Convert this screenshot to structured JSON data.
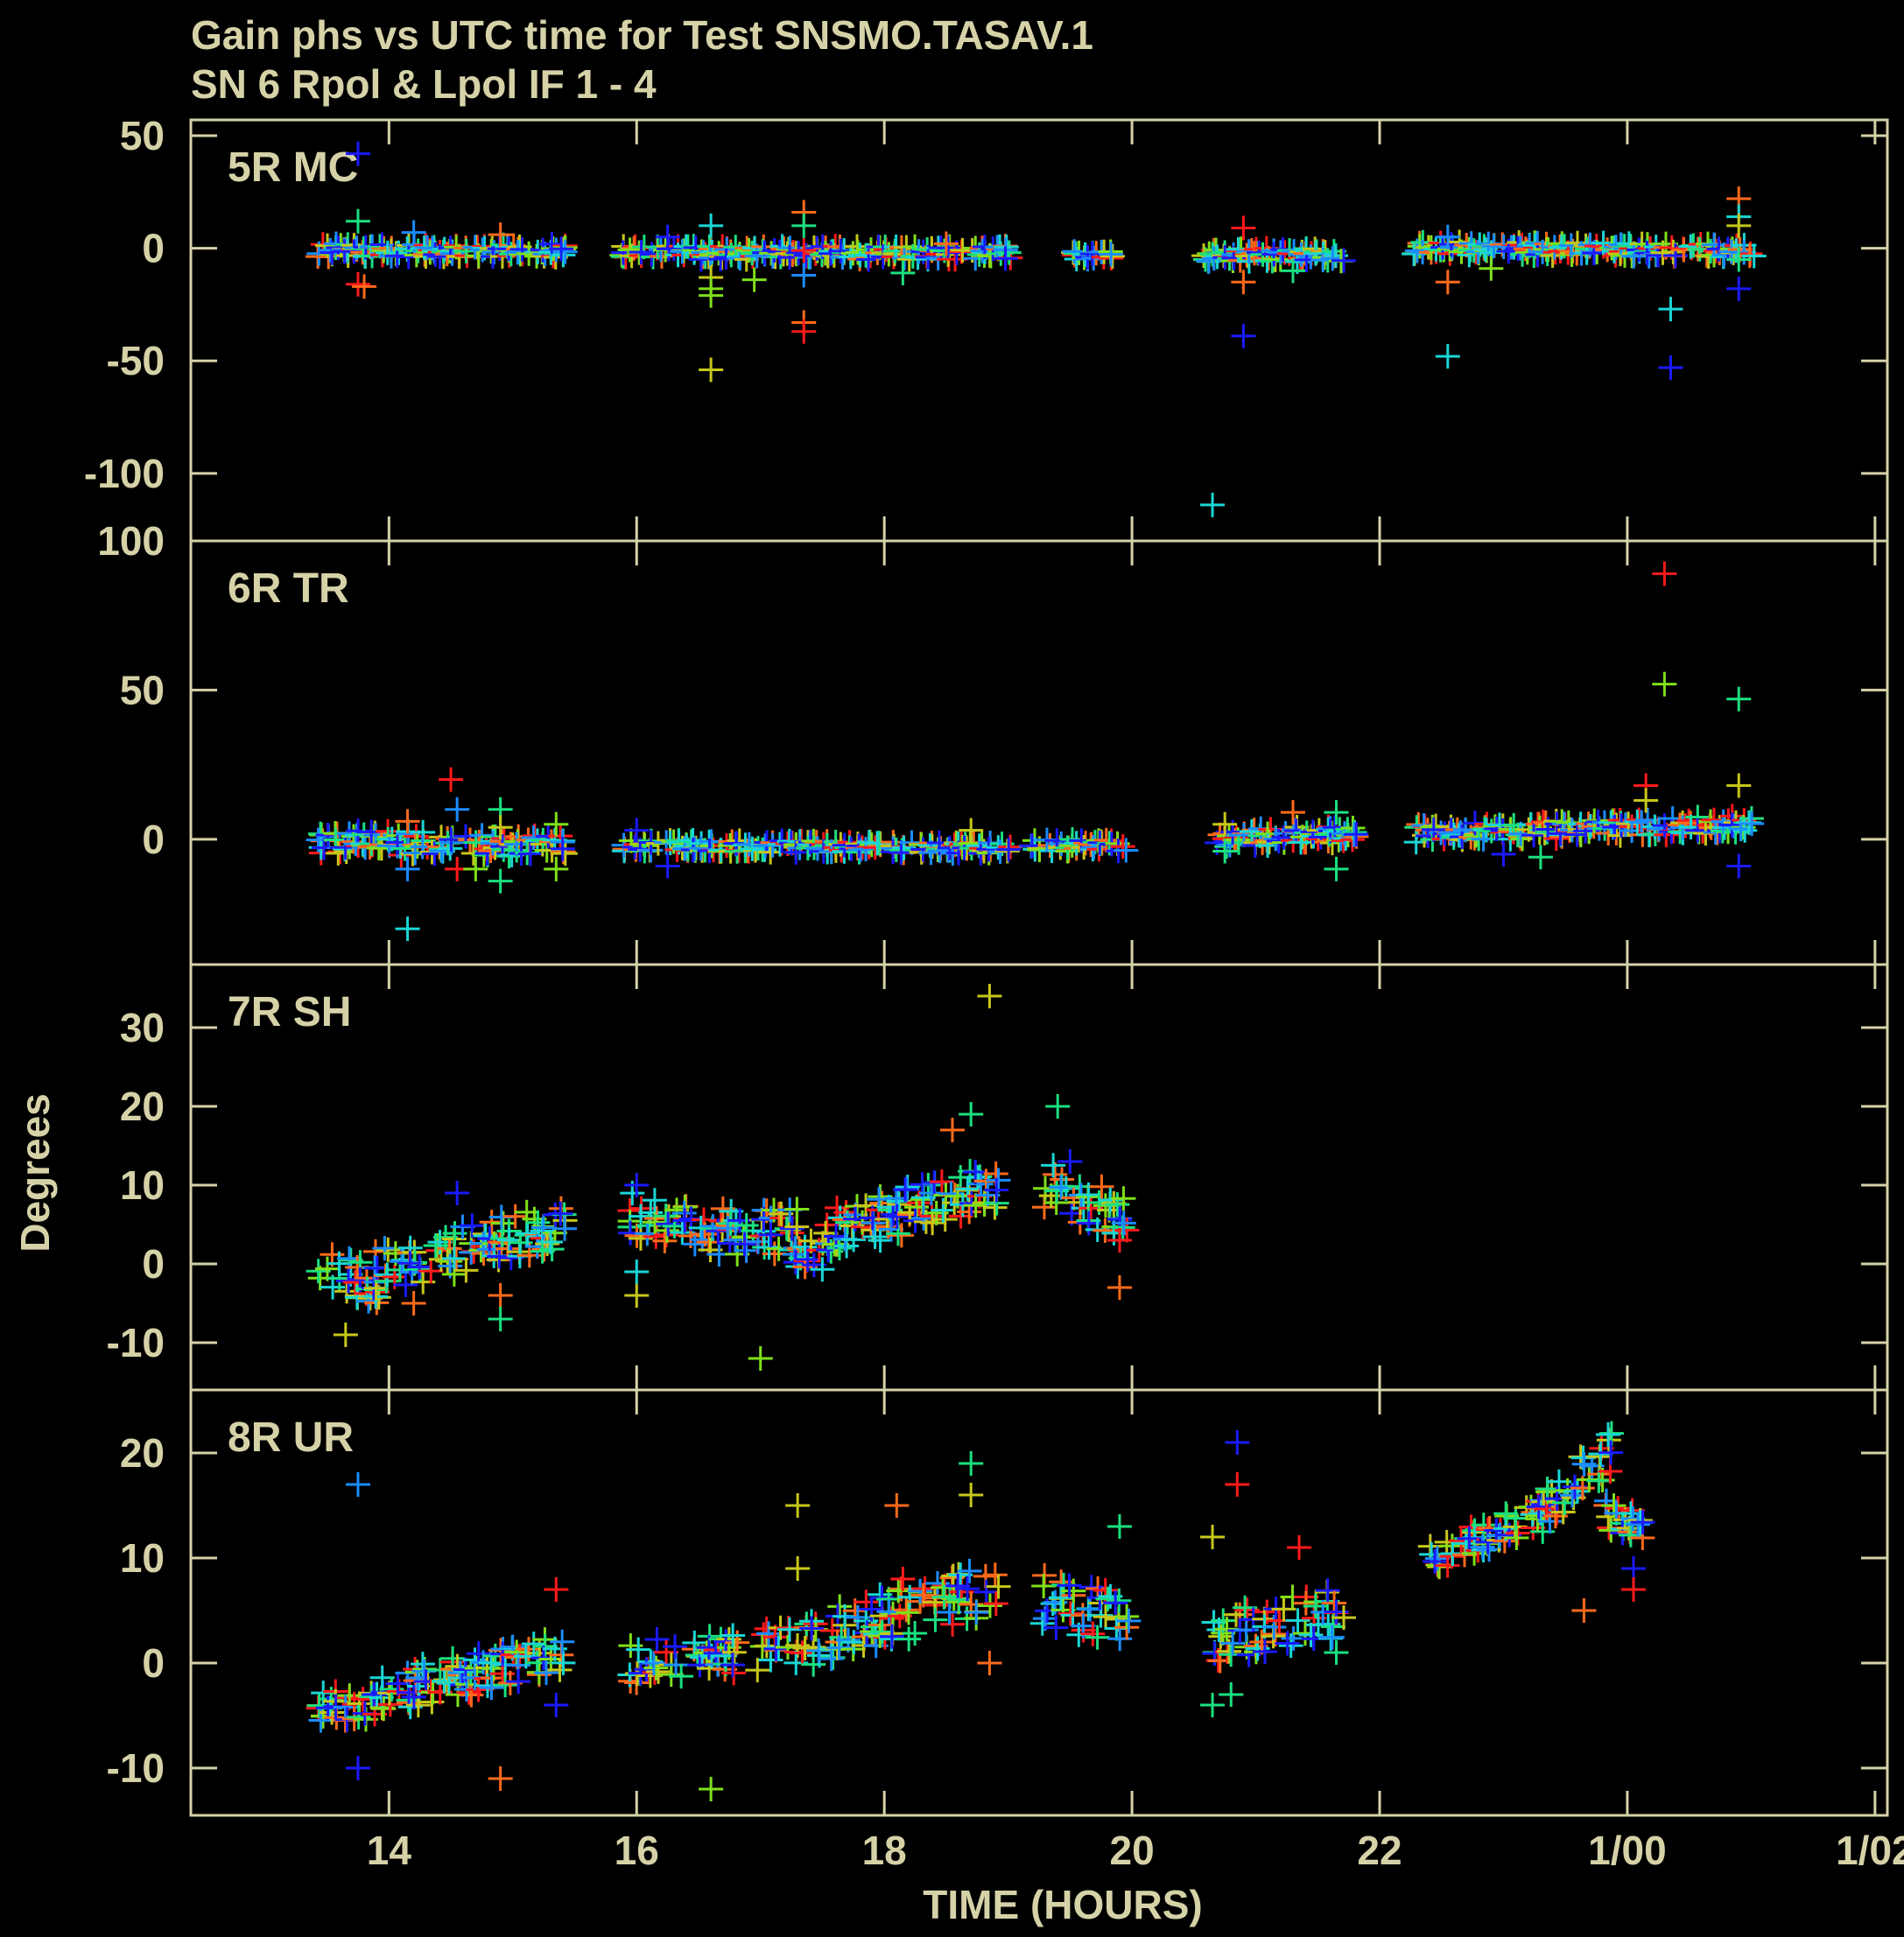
{
  "title": {
    "line1": "Gain phs vs UTC time for Test SNSMO.TASAV.1",
    "line2": "SN 6  Rpol & Lpol  IF 1 - 4"
  },
  "xlabel": "TIME (HOURS)",
  "ylabel": "Degrees",
  "colors": {
    "frame": "#d6d2a8",
    "palette": [
      "#ff1a1a",
      "#ff6a1a",
      "#c7c71a",
      "#7fe01a",
      "#1ae07f",
      "#1ad6d6",
      "#1a8cff",
      "#1a1aff"
    ]
  },
  "chart_data": [
    {
      "type": "scatter",
      "title": "5R MC",
      "xlim": [
        12.4,
        26.1
      ],
      "ylim": [
        -130,
        57
      ],
      "xticks": [
        14,
        16,
        18,
        20,
        22,
        24,
        26
      ],
      "xtick_labels": [
        "14",
        "16",
        "18",
        "20",
        "22",
        "1/00",
        "1/02"
      ],
      "yticks": [
        -100,
        -50,
        0,
        50
      ],
      "ytick_labels": [
        "-100",
        "-50",
        "0",
        "50"
      ],
      "segments": [
        {
          "t0": 13.45,
          "t1": 15.4,
          "base": [
            -1,
            -1
          ],
          "spread": 3
        },
        {
          "t0": 15.9,
          "t1": 19.0,
          "base": [
            -2,
            -2
          ],
          "spread": 3
        },
        {
          "t0": 19.55,
          "t1": 19.85,
          "base": [
            -3,
            -3
          ],
          "spread": 2
        },
        {
          "t0": 20.6,
          "t1": 21.7,
          "base": [
            -3,
            -3
          ],
          "spread": 3
        },
        {
          "t0": 22.3,
          "t1": 25.0,
          "base": [
            0,
            -1
          ],
          "spread": 3
        }
      ],
      "outliers": [
        [
          13.75,
          42,
          7
        ],
        [
          13.75,
          12,
          4
        ],
        [
          13.75,
          -16,
          0
        ],
        [
          13.8,
          -17,
          1
        ],
        [
          14.2,
          7,
          6
        ],
        [
          14.9,
          6,
          1
        ],
        [
          16.25,
          5,
          7
        ],
        [
          16.6,
          10,
          5
        ],
        [
          16.6,
          -13,
          2
        ],
        [
          16.6,
          -18,
          3
        ],
        [
          16.6,
          -21,
          3
        ],
        [
          16.6,
          -54,
          2
        ],
        [
          16.95,
          -14,
          3
        ],
        [
          17.35,
          16,
          1
        ],
        [
          17.35,
          10,
          4
        ],
        [
          17.35,
          -1,
          0
        ],
        [
          17.35,
          -12,
          6
        ],
        [
          17.35,
          -33,
          1
        ],
        [
          17.35,
          -37,
          0
        ],
        [
          18.15,
          -11,
          4
        ],
        [
          18.5,
          2,
          1
        ],
        [
          20.65,
          -114,
          5
        ],
        [
          20.9,
          9,
          0
        ],
        [
          20.9,
          -15,
          1
        ],
        [
          20.9,
          -39,
          7
        ],
        [
          21.3,
          -10,
          4
        ],
        [
          22.55,
          5,
          6
        ],
        [
          22.55,
          -15,
          1
        ],
        [
          22.55,
          -48,
          5
        ],
        [
          22.9,
          -9,
          3
        ],
        [
          24.35,
          -27,
          5
        ],
        [
          24.35,
          -53,
          7
        ],
        [
          24.9,
          22,
          1
        ],
        [
          24.9,
          14,
          5
        ],
        [
          24.9,
          10,
          2
        ],
        [
          24.9,
          -5,
          4
        ],
        [
          24.9,
          -18,
          7
        ]
      ]
    },
    {
      "type": "scatter",
      "title": "6R TR",
      "xlim": [
        12.4,
        26.1
      ],
      "ylim": [
        -42,
        100
      ],
      "xticks": [
        14,
        16,
        18,
        20,
        22,
        24,
        26
      ],
      "xtick_labels": [
        "14",
        "16",
        "18",
        "20",
        "22",
        "1/00",
        "1/02"
      ],
      "yticks": [
        0,
        50,
        100
      ],
      "ytick_labels": [
        "0",
        "50",
        "100"
      ],
      "segments": [
        {
          "t0": 13.45,
          "t1": 15.4,
          "base": [
            -1,
            -2
          ],
          "spread": 4
        },
        {
          "t0": 15.9,
          "t1": 19.0,
          "base": [
            -2,
            -3
          ],
          "spread": 2
        },
        {
          "t0": 19.2,
          "t1": 19.95,
          "base": [
            -2,
            -2
          ],
          "spread": 2
        },
        {
          "t0": 20.7,
          "t1": 21.8,
          "base": [
            0,
            2
          ],
          "spread": 3
        },
        {
          "t0": 22.3,
          "t1": 25.0,
          "base": [
            2,
            5
          ],
          "spread": 3
        }
      ],
      "outliers": [
        [
          14.15,
          -10,
          6
        ],
        [
          14.15,
          -30,
          5
        ],
        [
          14.15,
          6,
          1
        ],
        [
          14.5,
          20,
          0
        ],
        [
          14.55,
          10,
          6
        ],
        [
          14.55,
          -10,
          0
        ],
        [
          14.7,
          -10,
          3
        ],
        [
          14.9,
          10,
          4
        ],
        [
          14.9,
          -14,
          4
        ],
        [
          14.9,
          4,
          2
        ],
        [
          15.35,
          5,
          3
        ],
        [
          15.35,
          -10,
          3
        ],
        [
          16.0,
          3,
          7
        ],
        [
          16.25,
          -9,
          7
        ],
        [
          18.7,
          3,
          2
        ],
        [
          20.75,
          5,
          2
        ],
        [
          20.75,
          -4,
          4
        ],
        [
          21.3,
          9,
          1
        ],
        [
          21.65,
          9,
          4
        ],
        [
          21.65,
          -10,
          4
        ],
        [
          23.0,
          -5,
          7
        ],
        [
          23.3,
          -6,
          4
        ],
        [
          24.3,
          89,
          0
        ],
        [
          24.3,
          52,
          3
        ],
        [
          24.9,
          47,
          4
        ],
        [
          24.15,
          18,
          0
        ],
        [
          24.15,
          13,
          2
        ],
        [
          24.9,
          18,
          2
        ],
        [
          24.9,
          -9,
          7
        ]
      ]
    },
    {
      "type": "scatter",
      "title": "7R SH",
      "xlim": [
        12.4,
        26.1
      ],
      "ylim": [
        -16,
        38
      ],
      "xticks": [
        14,
        16,
        18,
        20,
        22,
        24,
        26
      ],
      "xtick_labels": [
        "14",
        "16",
        "18",
        "20",
        "22",
        "1/00",
        "1/02"
      ],
      "yticks": [
        -10,
        0,
        10,
        20,
        30
      ],
      "ytick_labels": [
        "-10",
        "0",
        "10",
        "20",
        "30"
      ],
      "segments": [
        {
          "t0": 13.45,
          "t1": 13.9,
          "base": [
            0,
            -3
          ],
          "spread": 2.5
        },
        {
          "t0": 13.9,
          "t1": 15.4,
          "base": [
            -1,
            5
          ],
          "spread": 3
        },
        {
          "t0": 15.95,
          "t1": 16.75,
          "base": [
            6,
            4
          ],
          "spread": 3
        },
        {
          "t0": 16.75,
          "t1": 17.3,
          "base": [
            4,
            4
          ],
          "spread": 3
        },
        {
          "t0": 17.3,
          "t1": 17.55,
          "base": [
            1,
            1
          ],
          "spread": 2
        },
        {
          "t0": 17.55,
          "t1": 18.9,
          "base": [
            4,
            10
          ],
          "spread": 3
        },
        {
          "t0": 19.3,
          "t1": 19.95,
          "base": [
            10,
            6
          ],
          "spread": 3
        }
      ],
      "outliers": [
        [
          13.65,
          -9,
          2
        ],
        [
          14.2,
          -5,
          1
        ],
        [
          14.55,
          9,
          7
        ],
        [
          14.9,
          -4,
          1
        ],
        [
          14.9,
          -7,
          4
        ],
        [
          16.0,
          -4,
          2
        ],
        [
          16.0,
          -1,
          5
        ],
        [
          16.0,
          10,
          7
        ],
        [
          17.0,
          -12,
          3
        ],
        [
          18.7,
          19,
          4
        ],
        [
          18.85,
          34,
          2
        ],
        [
          19.4,
          20,
          4
        ],
        [
          19.5,
          13,
          7
        ],
        [
          19.9,
          3,
          0
        ],
        [
          19.9,
          -3,
          1
        ],
        [
          18.55,
          17,
          1
        ]
      ]
    },
    {
      "type": "scatter",
      "title": "8R UR",
      "xlim": [
        12.4,
        26.1
      ],
      "ylim": [
        -14.5,
        26
      ],
      "xticks": [
        14,
        16,
        18,
        20,
        22,
        24,
        26
      ],
      "xtick_labels": [
        "14",
        "16",
        "18",
        "20",
        "22",
        "1/00",
        "1/02"
      ],
      "yticks": [
        -10,
        0,
        10,
        20
      ],
      "ytick_labels": [
        "-10",
        "0",
        "10",
        "20"
      ],
      "segments": [
        {
          "t0": 13.45,
          "t1": 13.95,
          "base": [
            -4,
            -4
          ],
          "spread": 1.5
        },
        {
          "t0": 13.95,
          "t1": 15.4,
          "base": [
            -3,
            1
          ],
          "spread": 2
        },
        {
          "t0": 15.95,
          "t1": 16.8,
          "base": [
            0,
            1
          ],
          "spread": 2
        },
        {
          "t0": 17.0,
          "t1": 18.9,
          "base": [
            1,
            7
          ],
          "spread": 2.5
        },
        {
          "t0": 19.3,
          "t1": 19.95,
          "base": [
            6,
            4
          ],
          "spread": 2.5
        },
        {
          "t0": 20.65,
          "t1": 21.7,
          "base": [
            2,
            5
          ],
          "spread": 2.5
        },
        {
          "t0": 22.4,
          "t1": 23.3,
          "base": [
            10,
            14
          ],
          "spread": 1.5
        },
        {
          "t0": 23.3,
          "t1": 23.85,
          "base": [
            14,
            20
          ],
          "spread": 2
        },
        {
          "t0": 23.85,
          "t1": 24.1,
          "base": [
            14,
            13
          ],
          "spread": 1.5
        }
      ],
      "outliers": [
        [
          13.75,
          17,
          6
        ],
        [
          13.75,
          -10,
          7
        ],
        [
          14.9,
          -11,
          1
        ],
        [
          15.35,
          7,
          0
        ],
        [
          15.35,
          -4,
          7
        ],
        [
          16.6,
          -12,
          3
        ],
        [
          17.3,
          15,
          2
        ],
        [
          17.3,
          9,
          2
        ],
        [
          18.1,
          15,
          1
        ],
        [
          18.15,
          8,
          0
        ],
        [
          18.7,
          19,
          4
        ],
        [
          18.7,
          16,
          2
        ],
        [
          18.85,
          0,
          1
        ],
        [
          20.65,
          12,
          2
        ],
        [
          20.65,
          -4,
          4
        ],
        [
          20.8,
          -3,
          4
        ],
        [
          20.85,
          21,
          7
        ],
        [
          20.85,
          17,
          0
        ],
        [
          21.35,
          11,
          0
        ],
        [
          21.65,
          1,
          4
        ],
        [
          23.65,
          5,
          1
        ],
        [
          24.05,
          9,
          7
        ],
        [
          24.05,
          7,
          0
        ],
        [
          19.9,
          13,
          4
        ]
      ]
    }
  ]
}
